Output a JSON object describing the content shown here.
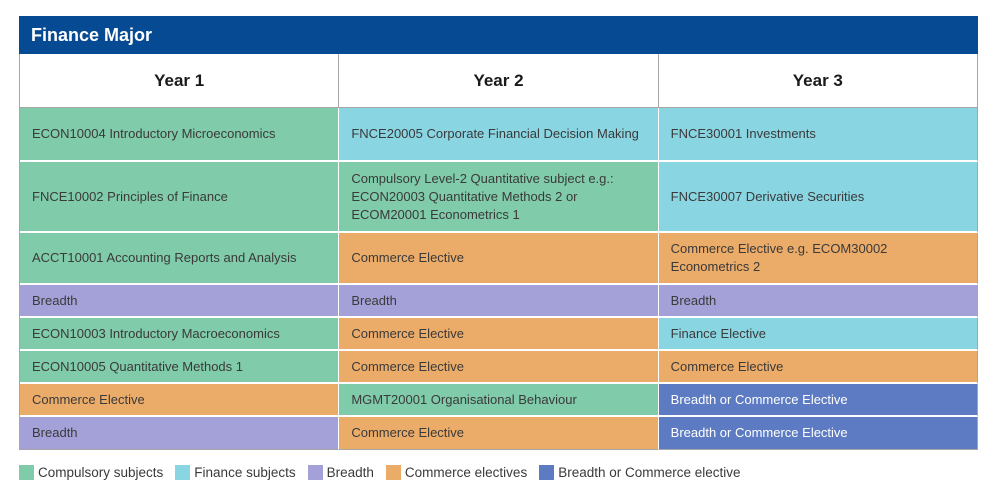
{
  "title": "Finance Major",
  "headers": [
    "Year 1",
    "Year 2",
    "Year 3"
  ],
  "colors": {
    "compulsory": "#80cba9",
    "finance": "#8ad5e2",
    "breadth": "#a4a1d8",
    "commerce": "#ebab69",
    "boc": "#5d7bc2",
    "title_bar": "#054a93"
  },
  "rows": [
    [
      {
        "text": "ECON10004 Introductory Microeconomics",
        "cat": "compulsory"
      },
      {
        "text": "FNCE20005 Corporate Financial Decision Making",
        "cat": "finance"
      },
      {
        "text": "FNCE30001 Investments",
        "cat": "finance"
      }
    ],
    [
      {
        "text": "FNCE10002 Principles of Finance",
        "cat": "compulsory"
      },
      {
        "text": "Compulsory Level-2 Quantitative subject e.g.: ECON20003 Quantitative Methods 2 or ECOM20001 Econometrics 1",
        "cat": "compulsory"
      },
      {
        "text": "FNCE30007 Derivative Securities",
        "cat": "finance"
      }
    ],
    [
      {
        "text": "ACCT10001 Accounting Reports and Analysis",
        "cat": "compulsory"
      },
      {
        "text": "Commerce Elective",
        "cat": "commerce"
      },
      {
        "text": "Commerce Elective e.g. ECOM30002 Econometrics 2",
        "cat": "commerce"
      }
    ],
    [
      {
        "text": "Breadth",
        "cat": "breadth"
      },
      {
        "text": "Breadth",
        "cat": "breadth"
      },
      {
        "text": "Breadth",
        "cat": "breadth"
      }
    ],
    [
      {
        "text": "ECON10003 Introductory Macroeconomics",
        "cat": "compulsory"
      },
      {
        "text": "Commerce Elective",
        "cat": "commerce"
      },
      {
        "text": "Finance Elective",
        "cat": "finance"
      }
    ],
    [
      {
        "text": "ECON10005 Quantitative Methods 1",
        "cat": "compulsory"
      },
      {
        "text": "Commerce Elective",
        "cat": "commerce"
      },
      {
        "text": "Commerce Elective",
        "cat": "commerce"
      }
    ],
    [
      {
        "text": "Commerce Elective",
        "cat": "commerce"
      },
      {
        "text": "MGMT20001 Organisational Behaviour",
        "cat": "compulsory"
      },
      {
        "text": "Breadth or Commerce Elective",
        "cat": "boc"
      }
    ],
    [
      {
        "text": "Breadth",
        "cat": "breadth"
      },
      {
        "text": "Commerce Elective",
        "cat": "commerce"
      },
      {
        "text": "Breadth or Commerce Elective",
        "cat": "boc"
      }
    ]
  ],
  "legend": [
    {
      "label": "Compulsory subjects",
      "cat": "compulsory"
    },
    {
      "label": "Finance subjects",
      "cat": "finance"
    },
    {
      "label": "Breadth",
      "cat": "breadth"
    },
    {
      "label": "Commerce electives",
      "cat": "commerce"
    },
    {
      "label": "Breadth or Commerce elective",
      "cat": "boc"
    }
  ]
}
